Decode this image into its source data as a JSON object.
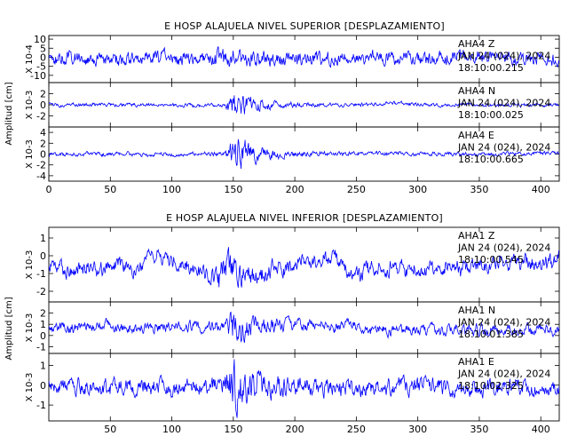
{
  "chart_data": [
    {
      "type": "line",
      "title": "E HOSP ALAJUELA NIVEL SUPERIOR [DESPLAZAMIENTO]",
      "ylabel": "Amplitud [cm]",
      "xlim": [
        0,
        415
      ],
      "xticks": [
        0,
        50,
        100,
        150,
        200,
        250,
        300,
        350,
        400
      ],
      "show_xtick_labels": true,
      "color": "#0000ff",
      "panels": [
        {
          "scale_label": "X 10-4",
          "ylim": [
            -14,
            12
          ],
          "yticks": [
            10,
            5,
            0,
            -5,
            -10
          ],
          "annotation": [
            "AHA4 Z",
            "JAN 24 (024), 2024",
            "18:10:00.215"
          ],
          "signal": {
            "base_amplitude": 0.36,
            "event_amplitude": 0.25,
            "event_time": 140,
            "drift_amplitude": 0.15
          }
        },
        {
          "scale_label": "X 10-3",
          "ylim": [
            -4,
            4
          ],
          "yticks": [
            2,
            0,
            -2
          ],
          "annotation": [
            "AHA4 N",
            "JAN 24 (024), 2024",
            "18:10:00.025"
          ],
          "signal": {
            "base_amplitude": 0.1,
            "event_amplitude": 0.75,
            "event_time": 150,
            "drift_amplitude": 0.05
          }
        },
        {
          "scale_label": "X 10-3",
          "ylim": [
            -5,
            5
          ],
          "yticks": [
            4,
            2,
            0,
            -2,
            -4
          ],
          "annotation": [
            "AHA4 E",
            "JAN 24 (024), 2024",
            "18:10:00.665"
          ],
          "signal": {
            "base_amplitude": 0.09,
            "event_amplitude": 0.8,
            "event_time": 150,
            "drift_amplitude": 0.05
          }
        }
      ]
    },
    {
      "type": "line",
      "title": "E HOSP ALAJUELA NIVEL INFERIOR [DESPLAZAMIENTO]",
      "ylabel": "Amplitud [cm]",
      "xlim": [
        0,
        415
      ],
      "xticks": [
        50,
        100,
        150,
        200,
        250,
        300,
        350,
        400
      ],
      "show_xtick_labels": true,
      "color": "#0000ff",
      "panels": [
        {
          "scale_label": "X 10-3",
          "ylim": [
            -2.6,
            1.6
          ],
          "yticks": [
            1,
            0,
            -1,
            -2
          ],
          "annotation": [
            "AHA1 Z",
            "JAN 24 (024), 2024",
            "18:10:00.545"
          ],
          "signal": {
            "base_amplitude": 0.25,
            "event_amplitude": 0.35,
            "event_time": 140,
            "drift_amplitude": 0.4
          }
        },
        {
          "scale_label": "X 10-3",
          "ylim": [
            -1.6,
            3.0
          ],
          "yticks": [
            2,
            1,
            0,
            -1
          ],
          "annotation": [
            "AHA1 N",
            "JAN 24 (024), 2024",
            "18:10:01.385"
          ],
          "signal": {
            "base_amplitude": 0.25,
            "event_amplitude": 0.55,
            "event_time": 150,
            "drift_amplitude": 0.2
          }
        },
        {
          "scale_label": "X 10-3",
          "ylim": [
            -1.8,
            1.6
          ],
          "yticks": [
            1,
            0,
            -1
          ],
          "annotation": [
            "AHA1 E",
            "JAN 24 (024), 2024",
            "18:10:02.325"
          ],
          "signal": {
            "base_amplitude": 0.3,
            "event_amplitude": 0.6,
            "event_time": 150,
            "drift_amplitude": 0.1
          }
        }
      ]
    }
  ]
}
